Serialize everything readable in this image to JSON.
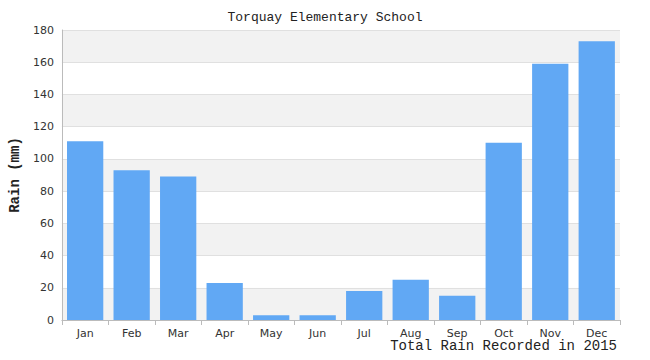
{
  "chart_data": {
    "type": "bar",
    "title": "Torquay Elementary School",
    "y_label": "Rain (mm)",
    "x_label": "Total Rain Recorded in 2015",
    "categories": [
      "Jan",
      "Feb",
      "Mar",
      "Apr",
      "May",
      "Jun",
      "Jul",
      "Aug",
      "Sep",
      "Oct",
      "Nov",
      "Dec"
    ],
    "values": [
      111,
      93,
      89,
      23,
      3,
      3,
      18,
      25,
      15,
      110,
      159,
      173
    ],
    "color": "#61a8f4",
    "ylim": [
      0,
      180
    ],
    "yticks": [
      0,
      20,
      40,
      60,
      80,
      100,
      120,
      140,
      160,
      180
    ],
    "grid": true
  }
}
